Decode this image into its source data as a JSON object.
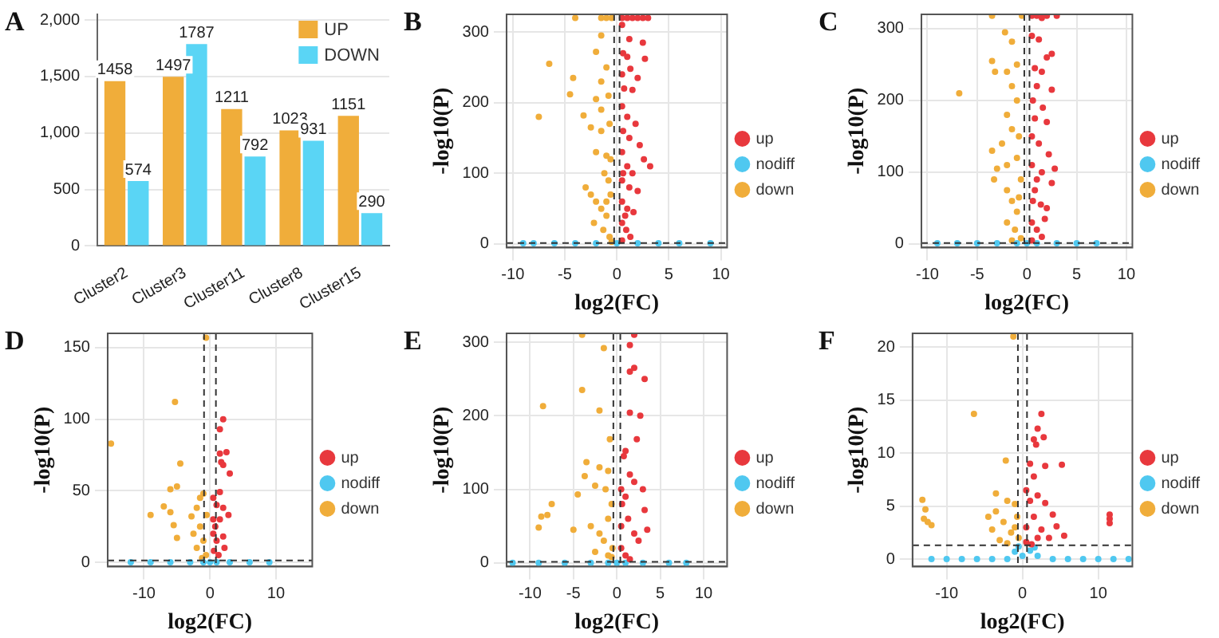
{
  "chart_data": [
    {
      "type": "bar",
      "title": "A",
      "categories": [
        "Cluster2",
        "Cluster3",
        "Cluster11",
        "Cluster8",
        "Cluster15"
      ],
      "series": [
        {
          "name": "UP",
          "color": "#f0ad3a",
          "values": [
            1458,
            1497,
            1211,
            1023,
            1151
          ]
        },
        {
          "name": "DOWN",
          "color": "#5ad5f5",
          "values": [
            574,
            1787,
            792,
            931,
            290
          ]
        }
      ],
      "ylim": [
        0,
        2050
      ],
      "yticks": [
        0,
        {
          "value": 500,
          "label": "500"
        },
        {
          "value": 1000,
          "label": "1,000"
        },
        {
          "value": 1500,
          "label": "1,500"
        },
        {
          "value": 2000,
          "label": "2,000"
        }
      ],
      "grid": "y",
      "legend": "top right",
      "data_labels": true
    },
    {
      "type": "scatter",
      "title": "B",
      "xlabel": "log2(FC)",
      "ylabel": "-log10(P)",
      "xlim": [
        -10.6,
        10.6
      ],
      "ylim": [
        -5,
        325
      ],
      "xticks": [
        -10,
        -5,
        0,
        5,
        10
      ],
      "yticks": [
        0,
        100,
        200,
        300
      ],
      "grid": true,
      "legend": "right",
      "marker": "circle",
      "ref_lines": [
        {
          "axis": "x",
          "value": -0.26,
          "line_style": "dashed",
          "color": "#333333"
        },
        {
          "axis": "x",
          "value": 0.26,
          "line_style": "dashed",
          "color": "#333333"
        },
        {
          "axis": "y",
          "value": 1.3,
          "line_style": "dashed",
          "color": "#333333"
        }
      ],
      "series": [
        {
          "name": "up",
          "color": "#e8383d",
          "x": [
            0.5,
            1,
            1.5,
            2,
            2.5,
            3,
            0.5,
            1.2,
            2.5,
            0.6,
            1,
            2.7,
            1.3,
            0.5,
            2,
            0.7,
            1.5,
            0.5,
            1,
            1.8,
            0.6,
            1.2,
            2.2,
            2.6,
            3.2,
            0.5,
            1,
            1.5,
            0.5,
            1.2,
            2,
            0.5,
            1,
            1.6,
            0.5,
            0.9,
            1.3,
            0.5,
            0.8,
            0.6
          ],
          "values": [
            320,
            320,
            320,
            320,
            320,
            320,
            310,
            290,
            285,
            270,
            265,
            262,
            248,
            240,
            235,
            220,
            218,
            195,
            180,
            170,
            160,
            150,
            140,
            120,
            110,
            130,
            110,
            100,
            90,
            80,
            75,
            60,
            50,
            45,
            30,
            20,
            10,
            5,
            40,
            100
          ]
        },
        {
          "name": "nodiff",
          "color": "#4fc8f0",
          "x": [
            -9,
            -8,
            -6,
            -4,
            -2,
            0,
            2,
            4,
            6,
            9
          ],
          "values": [
            1,
            1,
            1,
            1,
            1,
            1,
            1,
            1,
            1,
            1
          ]
        },
        {
          "name": "down",
          "color": "#f0ad3a",
          "x": [
            -0.5,
            -1,
            -4,
            -1.5,
            -7.5,
            -6.5,
            -4.2,
            -4.5,
            -3.2,
            -2,
            -1.5,
            -1,
            -1.5,
            -2,
            -1.5,
            -0.8,
            -2.5,
            -1.5,
            -0.7,
            -2,
            -1,
            -3,
            -2.5,
            -1.2,
            -0.6,
            -2,
            -1.5,
            -1,
            -0.6,
            -2.2,
            -1.3,
            -0.7,
            -0.5,
            -1,
            -0.8
          ],
          "values": [
            320,
            320,
            320,
            320,
            180,
            255,
            235,
            212,
            182,
            272,
            295,
            250,
            230,
            205,
            190,
            210,
            165,
            160,
            170,
            130,
            125,
            80,
            70,
            100,
            120,
            60,
            50,
            40,
            70,
            30,
            20,
            10,
            3,
            60,
            90
          ]
        }
      ]
    },
    {
      "type": "scatter",
      "title": "C",
      "xlabel": "log2(FC)",
      "ylabel": "-log10(P)",
      "xlim": [
        -10.6,
        10.6
      ],
      "ylim": [
        -5,
        320
      ],
      "xticks": [
        -10,
        -5,
        0,
        5,
        10
      ],
      "yticks": [
        0,
        100,
        200,
        300
      ],
      "grid": true,
      "legend": "right",
      "marker": "circle",
      "ref_lines": [
        {
          "axis": "x",
          "value": -0.26,
          "line_style": "dashed",
          "color": "#333333"
        },
        {
          "axis": "x",
          "value": 0.26,
          "line_style": "dashed",
          "color": "#333333"
        },
        {
          "axis": "y",
          "value": 1.3,
          "line_style": "dashed",
          "color": "#333333"
        }
      ],
      "series": [
        {
          "name": "up",
          "color": "#e8383d",
          "x": [
            0.5,
            1,
            2,
            3,
            1.5,
            0.5,
            1.2,
            2,
            2.5,
            0.8,
            1.5,
            2.5,
            1,
            0.6,
            1.6,
            0.8,
            2,
            0.5,
            1.2,
            2.2,
            2.8,
            1.5,
            2.5,
            0.5,
            1,
            0.6,
            1.4,
            2,
            0.5,
            1,
            1.5,
            0.5,
            0.8,
            1.8
          ],
          "values": [
            318,
            318,
            318,
            318,
            315,
            290,
            285,
            260,
            265,
            245,
            240,
            215,
            220,
            200,
            190,
            175,
            170,
            150,
            140,
            125,
            105,
            100,
            85,
            110,
            90,
            60,
            55,
            50,
            30,
            20,
            10,
            5,
            75,
            35
          ]
        },
        {
          "name": "nodiff",
          "color": "#4fc8f0",
          "x": [
            -9,
            -7,
            -5,
            -3,
            -1,
            0,
            1,
            3,
            5,
            7
          ],
          "values": [
            1,
            1,
            1,
            1,
            1,
            1,
            1,
            1,
            1,
            1
          ]
        },
        {
          "name": "down",
          "color": "#f0ad3a",
          "x": [
            -0.5,
            -3.5,
            -6.8,
            -3.5,
            -3.2,
            -2.2,
            -1.5,
            -1,
            -2,
            -1.5,
            -1,
            -2,
            -3.5,
            -3,
            -3.3,
            -1.5,
            -0.8,
            -2.5,
            -2,
            -1,
            -2,
            -1.5,
            -1,
            -0.6,
            -2,
            -1.2,
            -0.6,
            -1.5,
            -0.8
          ],
          "values": [
            318,
            318,
            210,
            255,
            240,
            295,
            282,
            250,
            240,
            220,
            200,
            180,
            130,
            105,
            90,
            160,
            150,
            140,
            110,
            120,
            75,
            60,
            45,
            90,
            30,
            20,
            8,
            5,
            65
          ]
        }
      ]
    },
    {
      "type": "scatter",
      "title": "D",
      "xlabel": "log2(FC)",
      "ylabel": "-log10(P)",
      "xlim": [
        -15.5,
        15.5
      ],
      "ylim": [
        -3,
        160
      ],
      "xticks": [
        -10,
        0,
        10
      ],
      "yticks": [
        0,
        50,
        100,
        150
      ],
      "grid": true,
      "legend": "right",
      "marker": "circle",
      "ref_lines": [
        {
          "axis": "x",
          "value": -0.9,
          "line_style": "dashed",
          "color": "#333333"
        },
        {
          "axis": "x",
          "value": 0.9,
          "line_style": "dashed",
          "color": "#333333"
        },
        {
          "axis": "y",
          "value": 1.3,
          "line_style": "dashed",
          "color": "#333333"
        }
      ],
      "series": [
        {
          "name": "up",
          "color": "#e8383d",
          "x": [
            2,
            1.5,
            1.5,
            2.5,
            1.7,
            2,
            3,
            1.5,
            0.5,
            1,
            2,
            2.8,
            0.5,
            1.5,
            0.5,
            1,
            2,
            0.6,
            1.3,
            2.2,
            0.8
          ],
          "values": [
            100,
            93,
            76,
            77,
            70,
            68,
            62,
            49,
            45,
            40,
            38,
            33,
            30,
            30,
            20,
            15,
            18,
            8,
            5,
            10,
            25
          ]
        },
        {
          "name": "nodiff",
          "color": "#4fc8f0",
          "x": [
            -12,
            -9,
            -6,
            -3,
            -1,
            0,
            1,
            3,
            6,
            9
          ],
          "values": [
            0,
            0,
            0,
            0,
            0,
            0,
            0,
            0,
            0,
            0
          ]
        },
        {
          "name": "down",
          "color": "#f0ad3a",
          "x": [
            -0.6,
            -15,
            -5.3,
            -4.5,
            -6,
            -5,
            -7,
            -6,
            -9,
            -5.5,
            -5,
            -1,
            -1.5,
            -2,
            -2.8,
            -0.5,
            -1.5,
            -2.5,
            -1,
            -2,
            -0.6,
            -1.2
          ],
          "values": [
            157,
            83,
            112,
            69,
            51,
            53,
            39,
            35,
            33,
            26,
            17,
            48,
            45,
            38,
            32,
            33,
            25,
            20,
            15,
            10,
            5,
            3
          ]
        }
      ]
    },
    {
      "type": "scatter",
      "title": "E",
      "xlabel": "log2(FC)",
      "ylabel": "-log10(P)",
      "xlim": [
        -12.7,
        12.7
      ],
      "ylim": [
        -5,
        312
      ],
      "xticks": [
        -10,
        -5,
        0,
        5,
        10
      ],
      "yticks": [
        0,
        100,
        200,
        300
      ],
      "grid": true,
      "legend": "right",
      "marker": "circle",
      "ref_lines": [
        {
          "axis": "x",
          "value": -0.4,
          "line_style": "dashed",
          "color": "#333333"
        },
        {
          "axis": "x",
          "value": 0.4,
          "line_style": "dashed",
          "color": "#333333"
        },
        {
          "axis": "y",
          "value": 1.3,
          "line_style": "dashed",
          "color": "#333333"
        }
      ],
      "series": [
        {
          "name": "up",
          "color": "#e8383d",
          "x": [
            2,
            1.5,
            2,
            3.2,
            1.5,
            2.7,
            1.5,
            2.3,
            1,
            0.8,
            1.5,
            2,
            3,
            0.5,
            1,
            3.2,
            3.5,
            2.5,
            0.5,
            1.3,
            2,
            0.5,
            1,
            1.5,
            0.6
          ],
          "values": [
            310,
            296,
            265,
            250,
            260,
            200,
            204,
            168,
            152,
            145,
            120,
            110,
            100,
            100,
            90,
            72,
            45,
            30,
            50,
            60,
            40,
            20,
            10,
            5,
            80
          ]
        },
        {
          "name": "nodiff",
          "color": "#4fc8f0",
          "x": [
            -12,
            -9,
            -6,
            -3,
            -1,
            0,
            1,
            3,
            6,
            8
          ],
          "values": [
            0,
            0,
            0,
            0,
            0,
            0,
            0,
            0,
            0,
            0
          ]
        },
        {
          "name": "down",
          "color": "#f0ad3a",
          "x": [
            -4,
            -1.5,
            -4,
            -8.5,
            -2,
            -0.8,
            -3.5,
            -2,
            -1,
            -3.7,
            -4.5,
            -2.5,
            -1.3,
            -7.5,
            -8,
            -8.7,
            -9,
            -5,
            -3,
            -2,
            -1,
            -0.6,
            -1.5,
            -0.5,
            -1,
            -2.5,
            -0.6
          ],
          "values": [
            310,
            292,
            235,
            213,
            207,
            168,
            137,
            130,
            125,
            118,
            93,
            105,
            100,
            80,
            65,
            63,
            48,
            45,
            50,
            40,
            60,
            80,
            30,
            20,
            10,
            15,
            8
          ]
        }
      ]
    },
    {
      "type": "scatter",
      "title": "F",
      "xlabel": "log2(FC)",
      "ylabel": "-log10(P)",
      "xlim": [
        -14.5,
        14.5
      ],
      "ylim": [
        -0.7,
        21.3
      ],
      "xticks": [
        -10,
        0,
        10
      ],
      "yticks": [
        0,
        5,
        10,
        15,
        20
      ],
      "grid": true,
      "legend": "right",
      "marker": "circle",
      "ref_lines": [
        {
          "axis": "x",
          "value": -0.6,
          "line_style": "dashed",
          "color": "#333333"
        },
        {
          "axis": "x",
          "value": 0.6,
          "line_style": "dashed",
          "color": "#333333"
        },
        {
          "axis": "y",
          "value": 1.3,
          "line_style": "dashed",
          "color": "#333333"
        }
      ],
      "series": [
        {
          "name": "up",
          "color": "#e8383d",
          "x": [
            2.5,
            2,
            1.5,
            2.8,
            1.8,
            5.2,
            1,
            3,
            1.5,
            0.5,
            2,
            3,
            4,
            4.5,
            5.5,
            11.5,
            11.5,
            11.5,
            0.5,
            1.5,
            2.5,
            3.5,
            0.5,
            1,
            2,
            1.2
          ],
          "values": [
            13.7,
            12.3,
            11.3,
            11.5,
            10.8,
            8.9,
            9,
            8.8,
            7.8,
            6.5,
            6,
            5.3,
            4.2,
            3.1,
            2.2,
            4.2,
            3.8,
            3.4,
            3,
            4,
            2.8,
            2,
            1.6,
            5.5,
            2,
            1.4
          ]
        },
        {
          "name": "nodiff",
          "color": "#4fc8f0",
          "x": [
            -12,
            -10,
            -8,
            -6,
            -4,
            -2,
            -1,
            -0.5,
            0,
            1.6,
            1,
            2,
            4,
            6,
            8,
            10,
            12,
            14
          ],
          "values": [
            0,
            0,
            0,
            0,
            0,
            0,
            0.7,
            1.2,
            0.3,
            1.1,
            0.8,
            0.3,
            0,
            0,
            0,
            0,
            0,
            0
          ]
        },
        {
          "name": "down",
          "color": "#f0ad3a",
          "x": [
            -1.2,
            -6.4,
            -2.2,
            -13.2,
            -12.8,
            -13,
            -12.5,
            -12,
            -3.5,
            -2,
            -3.5,
            -4.5,
            -1,
            -2.5,
            -4,
            -1.5,
            -3,
            -0.5,
            -2,
            -0.7,
            -1
          ],
          "values": [
            21,
            13.7,
            9.3,
            5.6,
            4.7,
            3.8,
            3.5,
            3.2,
            6.2,
            5.5,
            4.5,
            4,
            5.2,
            3.5,
            2.8,
            2.5,
            1.8,
            2,
            1.5,
            4,
            3
          ]
        }
      ]
    }
  ]
}
